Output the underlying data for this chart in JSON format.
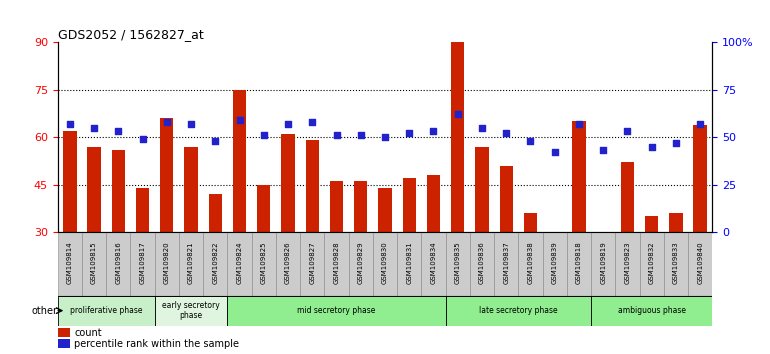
{
  "title": "GDS2052 / 1562827_at",
  "samples": [
    "GSM109814",
    "GSM109815",
    "GSM109816",
    "GSM109817",
    "GSM109820",
    "GSM109821",
    "GSM109822",
    "GSM109824",
    "GSM109825",
    "GSM109826",
    "GSM109827",
    "GSM109828",
    "GSM109829",
    "GSM109830",
    "GSM109831",
    "GSM109834",
    "GSM109835",
    "GSM109836",
    "GSM109837",
    "GSM109838",
    "GSM109839",
    "GSM109818",
    "GSM109819",
    "GSM109823",
    "GSM109832",
    "GSM109833",
    "GSM109840"
  ],
  "count_values": [
    62,
    57,
    56,
    44,
    66,
    57,
    42,
    75,
    45,
    61,
    59,
    46,
    46,
    44,
    47,
    48,
    90,
    57,
    51,
    36,
    28,
    65,
    29,
    52,
    35,
    36,
    64
  ],
  "percentile_values": [
    57,
    55,
    53,
    49,
    58,
    57,
    48,
    59,
    51,
    57,
    58,
    51,
    51,
    50,
    52,
    53,
    62,
    55,
    52,
    48,
    42,
    57,
    43,
    53,
    45,
    47,
    57
  ],
  "ylim_left": [
    30,
    90
  ],
  "ylim_right": [
    0,
    100
  ],
  "yticks_left": [
    30,
    45,
    60,
    75,
    90
  ],
  "yticks_right": [
    0,
    25,
    50,
    75,
    100
  ],
  "yticklabels_right": [
    "0",
    "25",
    "50",
    "75",
    "100%"
  ],
  "bar_color": "#cc2200",
  "dot_color": "#2222cc",
  "phases": [
    {
      "label": "proliferative phase",
      "start": 0,
      "end": 4,
      "color": "#c8f0c8"
    },
    {
      "label": "early secretory\nphase",
      "start": 4,
      "end": 7,
      "color": "#dff5df"
    },
    {
      "label": "mid secretory phase",
      "start": 7,
      "end": 16,
      "color": "#90ee90"
    },
    {
      "label": "late secretory phase",
      "start": 16,
      "end": 22,
      "color": "#90ee90"
    },
    {
      "label": "ambiguous phase",
      "start": 22,
      "end": 27,
      "color": "#90ee90"
    }
  ],
  "other_label": "other",
  "legend_count_label": "count",
  "legend_percentile_label": "percentile rank within the sample",
  "bar_width": 0.55,
  "dot_size": 22
}
